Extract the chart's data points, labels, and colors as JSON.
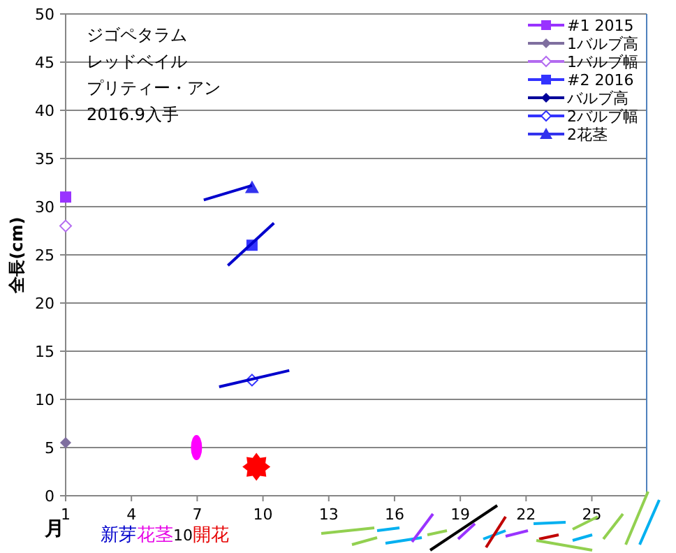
{
  "chart_data": {
    "type": "scatter",
    "ylabel": "全長(cm)",
    "xlabel": "月",
    "xlim": [
      1,
      27.5
    ],
    "xticks": [
      1,
      4,
      7,
      10,
      13,
      16,
      19,
      22,
      25
    ],
    "ylim": [
      0,
      50
    ],
    "yticks": [
      0,
      5,
      10,
      15,
      20,
      25,
      30,
      35,
      40,
      45,
      50
    ],
    "grid": "y",
    "legend": "top right",
    "annotations": [
      "ジゴペタラム",
      "レッドベイル",
      "プリティー・アン",
      "2016.9入手",
      "新芽",
      "花茎",
      "10",
      "開花"
    ],
    "series": [
      {
        "name": "#1 2015",
        "color": "#9933ff",
        "marker": "square",
        "x": [
          1
        ],
        "values": [
          31
        ]
      },
      {
        "name": "1バルブ高",
        "color": "#7f6f9f",
        "marker": "diamond",
        "x": [
          1
        ],
        "values": [
          5.5
        ]
      },
      {
        "name": "1バルブ幅",
        "color": "#b36bf0",
        "marker": "diamond_open",
        "x": [
          1
        ],
        "values": [
          28
        ]
      },
      {
        "name": "#2 2016",
        "color": "#3333ff",
        "marker": "square",
        "x": [
          9.5
        ],
        "values": [
          26
        ]
      },
      {
        "name": "バルブ高",
        "color": "#000099",
        "marker": "diamond"
      },
      {
        "name": "2バルブ幅",
        "color": "#3333ff",
        "marker": "diamond_open",
        "x": [
          9.5
        ],
        "values": [
          12
        ]
      },
      {
        "name": "2花茎",
        "color": "#3333ee",
        "marker": "triangle",
        "x": [
          9.5
        ],
        "values": [
          32
        ]
      },
      {
        "type": "line",
        "color": "#0000cc",
        "x": [
          7.3,
          9.5
        ],
        "values": [
          30.7,
          32.2
        ]
      },
      {
        "type": "line",
        "color": "#0000cc",
        "x": [
          8.4,
          10.5
        ],
        "values": [
          23.9,
          28.3
        ]
      },
      {
        "type": "line",
        "color": "#0000cc",
        "x": [
          8.0,
          11.2
        ],
        "values": [
          11.3,
          13.0
        ]
      }
    ]
  }
}
